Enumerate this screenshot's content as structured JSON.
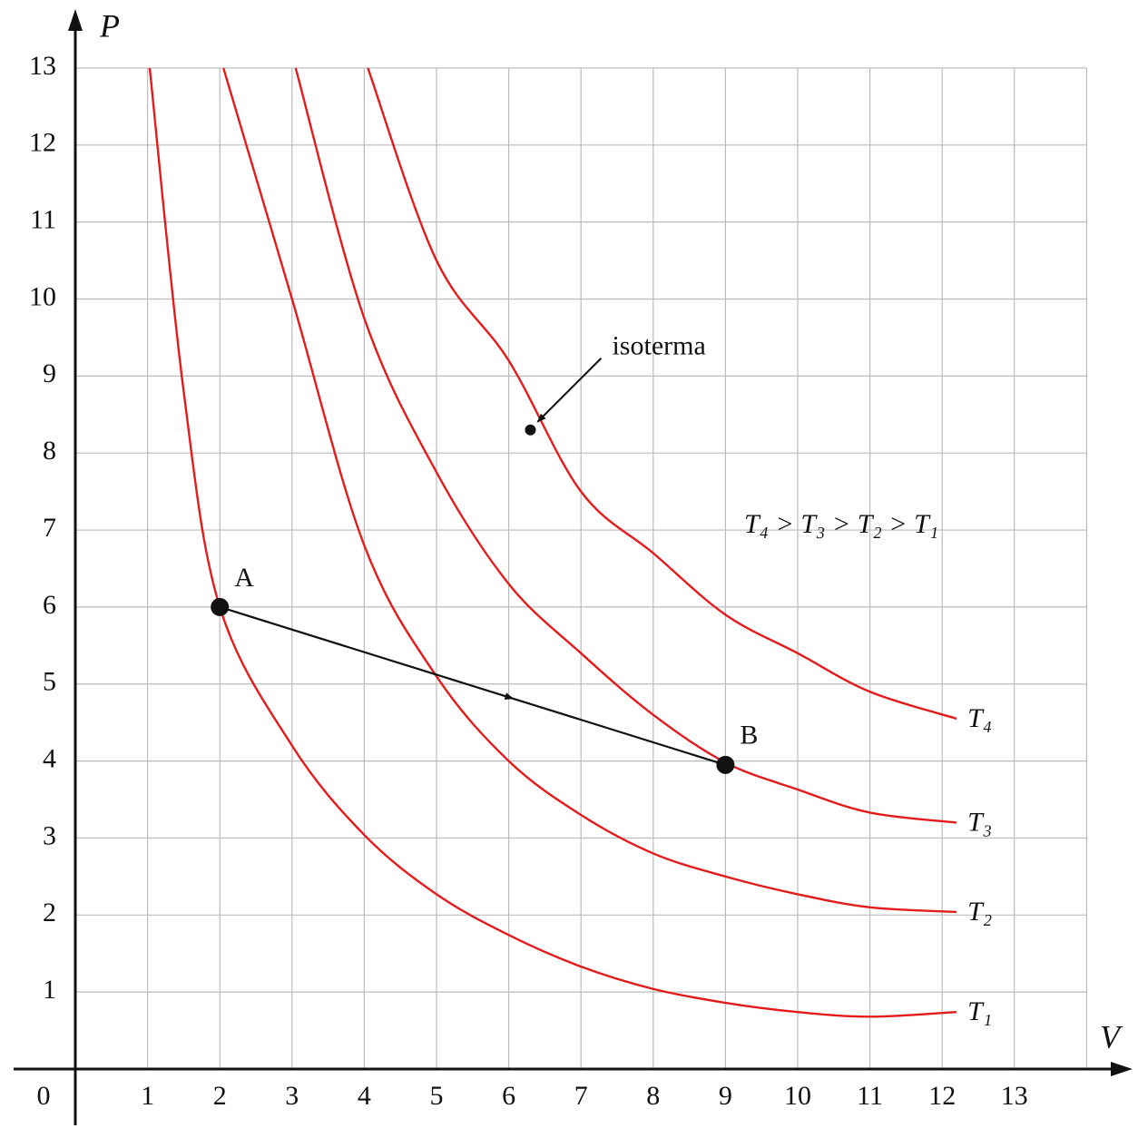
{
  "chart_data": {
    "type": "line",
    "x_label": "V",
    "y_label": "P",
    "xlim": [
      0,
      14
    ],
    "ylim": [
      0,
      13
    ],
    "xticks": [
      0,
      1,
      2,
      3,
      4,
      5,
      6,
      7,
      8,
      9,
      10,
      11,
      12,
      13
    ],
    "yticks": [
      1,
      2,
      3,
      4,
      5,
      6,
      7,
      8,
      9,
      10,
      11,
      12,
      13
    ],
    "grid": true,
    "series": [
      {
        "name": "T₁",
        "color": "#e31b1b",
        "x": [
          1.03,
          1.5,
          2,
          3,
          4,
          5,
          6,
          7,
          8,
          9,
          10,
          11,
          12.2
        ],
        "values": [
          13,
          8.8,
          6,
          4.2,
          3.04,
          2.27,
          1.74,
          1.33,
          1.04,
          0.86,
          0.74,
          0.68,
          0.74
        ]
      },
      {
        "name": "T₂",
        "color": "#e31b1b",
        "x": [
          2.05,
          3,
          4,
          5,
          6,
          7,
          8,
          9,
          10,
          11,
          12.2
        ],
        "values": [
          13,
          10,
          6.8,
          5.1,
          4,
          3.3,
          2.8,
          2.5,
          2.27,
          2.1,
          2.04
        ]
      },
      {
        "name": "T₃",
        "color": "#e31b1b",
        "x": [
          3.05,
          4,
          5,
          6,
          7,
          8,
          9,
          10,
          11,
          12.2
        ],
        "values": [
          13,
          9.75,
          7.75,
          6.3,
          5.4,
          4.6,
          3.98,
          3.63,
          3.33,
          3.2
        ]
      },
      {
        "name": "T₄",
        "color": "#e31b1b",
        "x": [
          4.05,
          5,
          6,
          7,
          8,
          9,
          10,
          11,
          12.2
        ],
        "values": [
          13,
          10.5,
          9.2,
          7.5,
          6.7,
          5.9,
          5.4,
          4.9,
          4.55
        ]
      }
    ],
    "points": [
      {
        "label": "A",
        "x": 2,
        "y": 6
      },
      {
        "label": "B",
        "x": 9,
        "y": 3.95
      }
    ],
    "annotation": {
      "text": "isoterma",
      "x": 6.3,
      "y": 8.3
    },
    "relation": "T₄ > T₃ > T₂ > T₁"
  }
}
